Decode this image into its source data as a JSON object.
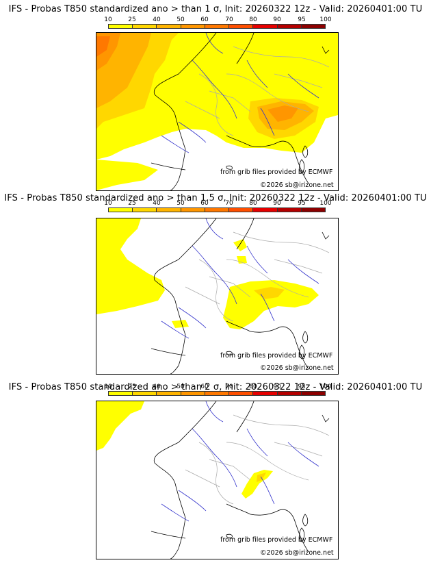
{
  "legend": {
    "ticks": [
      "10",
      "25",
      "40",
      "50",
      "60",
      "70",
      "80",
      "90",
      "95",
      "100"
    ],
    "colors": [
      "#ffff00",
      "#ffd700",
      "#ffb400",
      "#ff9600",
      "#ff7800",
      "#ff4f00",
      "#e60000",
      "#b40000",
      "#8c0000",
      "#5a0000"
    ]
  },
  "panels": [
    {
      "title": "IFS - Probas T850  standardized ano > than 1 σ, Init: 20260322 12z - Valid: 20260401:00 TU",
      "credit": "from grib files provided by ECMWF",
      "copyright": "©2026 sb@irizone.net",
      "threshold": "1 σ"
    },
    {
      "title": "IFS - Probas T850  standardized ano > than 1.5 σ, Init: 20260322 12z - Valid: 20260401:00 TU",
      "credit": "from grib files provided by ECMWF",
      "copyright": "©2026 sb@irizone.net",
      "threshold": "1.5 σ"
    },
    {
      "title": "IFS - Probas T850  standardized ano > than 2 σ, Init: 20260322 12z - Valid: 20260401:00 TU",
      "credit": "from grib files provided by ECMWF",
      "copyright": "©2026 sb@irizone.net",
      "threshold": "2 σ"
    }
  ]
}
